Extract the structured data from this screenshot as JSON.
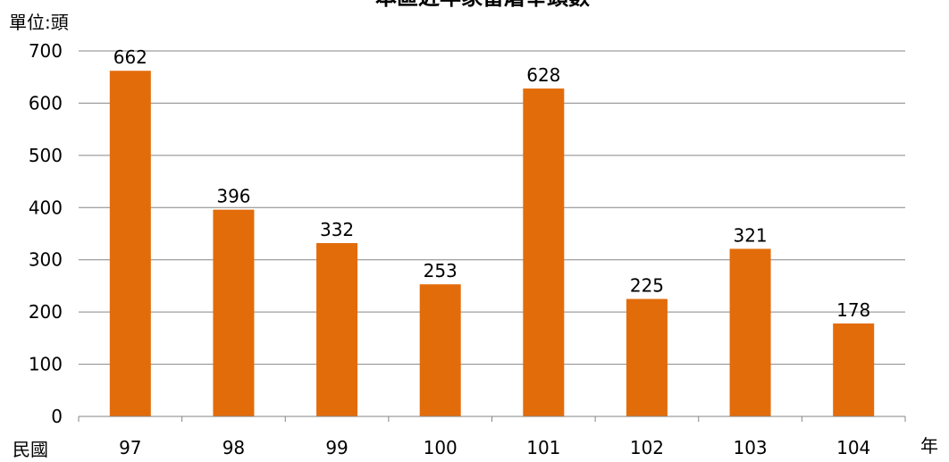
{
  "chart_data": {
    "type": "bar",
    "title": "本區近年家畜屠宰頭數",
    "unit_label": "單位:頭",
    "xlabel": "民國",
    "x_unit": "年",
    "categories": [
      "97",
      "98",
      "99",
      "100",
      "101",
      "102",
      "103",
      "104"
    ],
    "values": [
      662,
      396,
      332,
      253,
      628,
      225,
      321,
      178
    ],
    "ylim": [
      0,
      700
    ],
    "yticks": [
      0,
      100,
      200,
      300,
      400,
      500,
      600,
      700
    ],
    "grid": true,
    "legend": "none",
    "bar_color": "#E36C0A",
    "gridline_color": "#868686"
  }
}
